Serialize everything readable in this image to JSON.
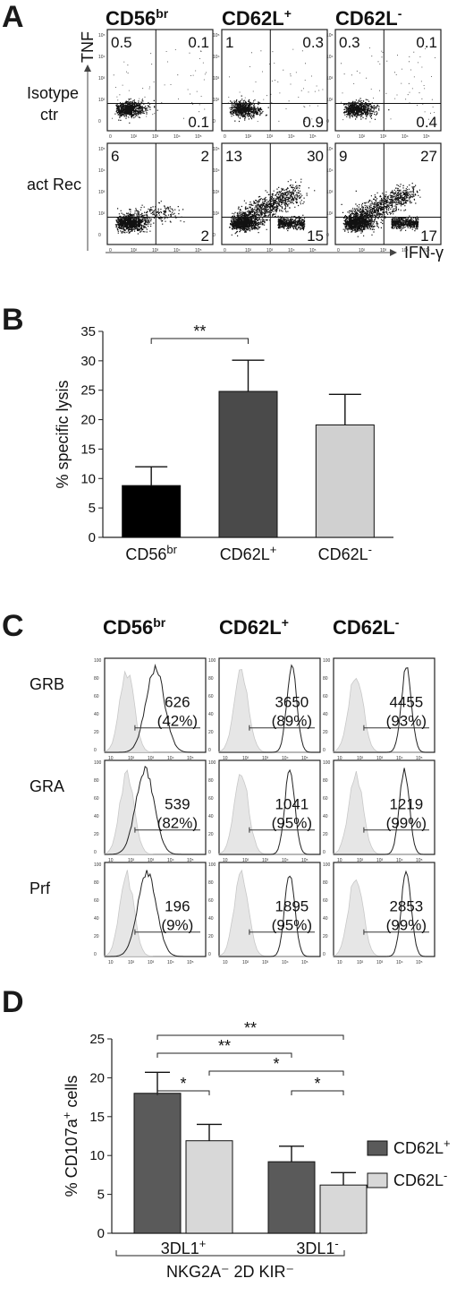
{
  "panels": {
    "A": "A",
    "B": "B",
    "C": "C",
    "D": "D"
  },
  "panel_a": {
    "columns": [
      "CD56",
      "CD62L",
      "CD62L"
    ],
    "column_sups": [
      "br",
      "+",
      "-"
    ],
    "rows": [
      [
        "Isotype",
        "ctr"
      ],
      [
        "act Rec"
      ]
    ],
    "y_axis": "TNF",
    "x_axis": "IFN-γ",
    "quadrants": [
      [
        [
          "0.5",
          "0.1",
          "0.1"
        ],
        [
          "1",
          "0.3",
          "0.9"
        ],
        [
          "0.3",
          "0.1",
          "0.4"
        ]
      ],
      [
        [
          "6",
          "2",
          "2"
        ],
        [
          "13",
          "30",
          "15"
        ],
        [
          "9",
          "27",
          "17"
        ]
      ]
    ],
    "tick_labels": [
      "10⁵",
      "10⁴",
      "10³",
      "10²",
      "0"
    ]
  },
  "chart_data": [
    {
      "type": "bar",
      "categories": [
        "CD56br",
        "CD62L+",
        "CD62L-"
      ],
      "values": [
        8.8,
        24.8,
        19.1
      ],
      "errors": [
        3.2,
        5.3,
        5.2
      ],
      "colors": [
        "#000000",
        "#4a4a4a",
        "#d0d0d0"
      ],
      "ylabel": "% specific lysis",
      "ylim": [
        0,
        35
      ],
      "yticks": [
        0,
        5,
        10,
        15,
        20,
        25,
        30,
        35
      ],
      "significance": [
        {
          "from": 0,
          "to": 1,
          "label": "**"
        }
      ]
    },
    {
      "type": "bar",
      "groups": [
        "3DL1+",
        "3DL1-"
      ],
      "group_labels": [
        {
          "base": "3DL1",
          "sup": "+"
        },
        {
          "base": "3DL1",
          "sup": "-"
        }
      ],
      "series": [
        {
          "name": "CD62L+",
          "values": [
            18.0,
            9.2
          ],
          "errors": [
            2.7,
            2.0
          ],
          "color": "#5a5a5a"
        },
        {
          "name": "CD62L-",
          "values": [
            11.9,
            6.2
          ],
          "errors": [
            2.1,
            1.6
          ],
          "color": "#d8d8d8"
        }
      ],
      "legend": [
        {
          "base": "CD62L",
          "sup": "+"
        },
        {
          "base": "CD62L",
          "sup": "-"
        }
      ],
      "ylabel": "% CD107a+ cells",
      "ylim": [
        0,
        25
      ],
      "yticks": [
        0,
        5,
        10,
        15,
        20,
        25
      ],
      "footer": "NKG2A⁻ 2D KIR⁻",
      "significance": [
        {
          "label": "**"
        },
        {
          "label": "**"
        },
        {
          "label": "*"
        },
        {
          "label": "*"
        },
        {
          "label": "*"
        }
      ]
    }
  ],
  "panel_c": {
    "columns": [
      "CD56",
      "CD62L",
      "CD62L"
    ],
    "column_sups": [
      "br",
      "+",
      "-"
    ],
    "rows": [
      "GRB",
      "GRA",
      "Prf"
    ],
    "values": [
      [
        [
          "626",
          "(42%)"
        ],
        [
          "3650",
          "(89%)"
        ],
        [
          "4455",
          "(93%)"
        ]
      ],
      [
        [
          "539",
          "(82%)"
        ],
        [
          "1041",
          "(95%)"
        ],
        [
          "1219",
          "(99%)"
        ]
      ],
      [
        [
          "196",
          "(9%)"
        ],
        [
          "1895",
          "(95%)"
        ],
        [
          "2853",
          "(99%)"
        ]
      ]
    ]
  }
}
